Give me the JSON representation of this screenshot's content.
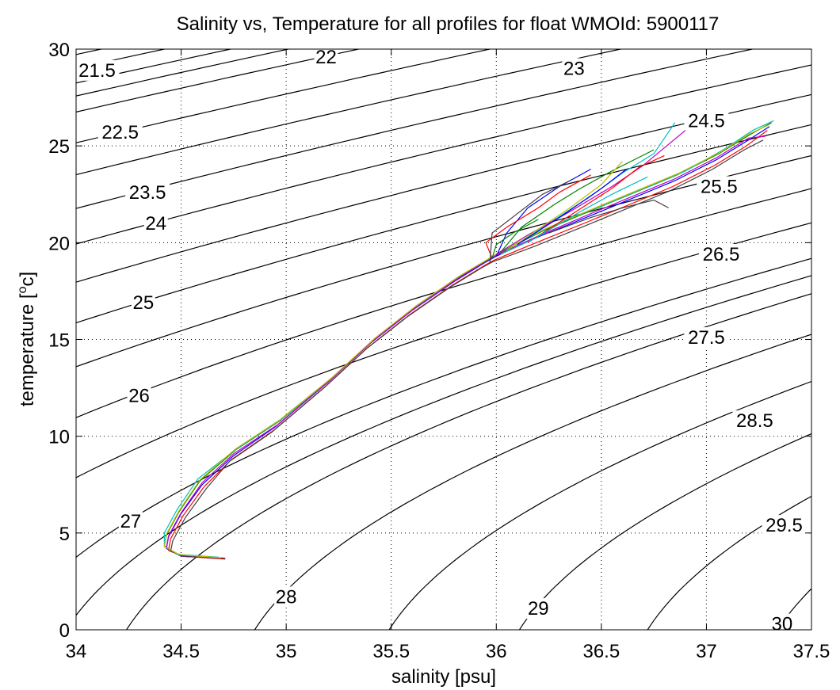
{
  "chart_data": {
    "type": "scatter",
    "title": "Salinity vs, Temperature for all profiles for float WMOId: 5900117",
    "xlabel": "salinity [psu]",
    "ylabel_main": "temperature [",
    "ylabel_sup": "o",
    "ylabel_end": "c]",
    "xlim": [
      34,
      37.5
    ],
    "ylim": [
      0,
      30
    ],
    "xticks": [
      34,
      34.5,
      35,
      35.5,
      36,
      36.5,
      37,
      37.5
    ],
    "xtick_labels": [
      "34",
      "34.5",
      "35",
      "35.5",
      "36",
      "36.5",
      "37",
      "37.5"
    ],
    "yticks": [
      0,
      5,
      10,
      15,
      20,
      25,
      30
    ],
    "ytick_labels": [
      "0",
      "5",
      "10",
      "15",
      "20",
      "25",
      "30"
    ],
    "grid": true,
    "contour_labels": [
      {
        "text": "21.5",
        "s": 34.1,
        "t": 28.9
      },
      {
        "text": "22",
        "s": 35.19,
        "t": 29.6
      },
      {
        "text": "23",
        "s": 36.37,
        "t": 29.0
      },
      {
        "text": "22.5",
        "s": 34.21,
        "t": 25.7
      },
      {
        "text": "24.5",
        "s": 37.0,
        "t": 26.3
      },
      {
        "text": "23.5",
        "s": 34.34,
        "t": 22.6
      },
      {
        "text": "25.5",
        "s": 37.06,
        "t": 22.9
      },
      {
        "text": "24",
        "s": 34.38,
        "t": 21.0
      },
      {
        "text": "26.5",
        "s": 37.07,
        "t": 19.4
      },
      {
        "text": "25",
        "s": 34.32,
        "t": 16.9
      },
      {
        "text": "27.5",
        "s": 37.0,
        "t": 15.1
      },
      {
        "text": "26",
        "s": 34.3,
        "t": 12.1
      },
      {
        "text": "28.5",
        "s": 37.23,
        "t": 10.8
      },
      {
        "text": "27",
        "s": 34.26,
        "t": 5.6
      },
      {
        "text": "28",
        "s": 35.0,
        "t": 1.7
      },
      {
        "text": "29",
        "s": 36.2,
        "t": 1.1
      },
      {
        "text": "29.5",
        "s": 37.37,
        "t": 5.4
      },
      {
        "text": "30",
        "s": 37.36,
        "t": 0.3
      }
    ],
    "isopycnals": [
      [
        34.0,
        0.75
      ],
      [
        34.0,
        3.75
      ],
      [
        34.0,
        7.86
      ],
      [
        34.0,
        10.96
      ],
      [
        34.0,
        13.59
      ],
      [
        34.0,
        15.86
      ],
      [
        34.0,
        17.96
      ],
      [
        34.0,
        19.93
      ],
      [
        34.0,
        21.77
      ],
      [
        34.0,
        23.51
      ],
      [
        34.0,
        25.16
      ],
      [
        34.0,
        26.75
      ],
      [
        34.0,
        28.25
      ],
      [
        34.0,
        29.72
      ],
      [
        34.42,
        30.0
      ],
      [
        35.01,
        30.0
      ],
      [
        34.24,
        0.0
      ],
      [
        34.85,
        0.0
      ],
      [
        35.49,
        0.0
      ],
      [
        36.11,
        0.0
      ],
      [
        36.72,
        0.0
      ],
      [
        37.34,
        0.0
      ]
    ],
    "isopycnal_slope": [
      0.058,
      0.0166,
      -0.000143
    ],
    "profile_colors": [
      "#0000ff",
      "#008000",
      "#ff0000",
      "#00bfbf",
      "#bf00bf",
      "#bfbf00",
      "#404040"
    ],
    "series": [
      {
        "color": "#0000ff",
        "s": [
          34.7,
          34.5,
          34.43,
          34.44,
          34.5,
          34.6,
          34.75,
          34.95,
          35.2,
          35.4,
          35.6,
          35.8,
          35.95,
          36.0,
          36.2,
          36.45,
          36.65,
          36.85,
          37.05,
          37.2,
          37.3
        ],
        "t": [
          3.7,
          3.8,
          4.2,
          4.8,
          6.0,
          7.5,
          9.0,
          10.5,
          12.8,
          14.8,
          16.5,
          18.0,
          19.0,
          19.3,
          20.3,
          21.4,
          22.3,
          23.2,
          24.3,
          25.3,
          26.0
        ]
      },
      {
        "color": "#008000",
        "s": [
          34.69,
          34.49,
          34.42,
          34.43,
          34.49,
          34.59,
          34.76,
          34.97,
          35.22,
          35.42,
          35.62,
          35.82,
          35.96,
          36.02,
          36.22,
          36.46,
          36.66,
          36.86,
          37.06,
          37.21,
          37.31
        ],
        "t": [
          3.7,
          3.85,
          4.3,
          4.9,
          6.1,
          7.7,
          9.3,
          10.8,
          13.0,
          15.0,
          16.7,
          18.2,
          19.1,
          19.5,
          20.6,
          21.7,
          22.6,
          23.5,
          24.6,
          25.6,
          26.2
        ]
      },
      {
        "color": "#ff0000",
        "s": [
          34.71,
          34.51,
          34.44,
          34.45,
          34.51,
          34.61,
          34.74,
          34.94,
          35.19,
          35.39,
          35.59,
          35.79,
          35.94,
          35.99,
          36.19,
          36.44,
          36.64,
          36.84,
          37.04,
          37.19,
          37.29
        ],
        "t": [
          3.65,
          3.8,
          4.1,
          4.7,
          5.9,
          7.4,
          8.8,
          10.3,
          12.6,
          14.6,
          16.3,
          17.8,
          18.8,
          19.1,
          20.0,
          21.1,
          22.0,
          22.9,
          24.0,
          25.0,
          25.8
        ]
      },
      {
        "color": "#00bfbf",
        "s": [
          34.68,
          34.48,
          34.42,
          34.42,
          34.48,
          34.58,
          34.77,
          34.98,
          35.23,
          35.43,
          35.63,
          35.83,
          35.97,
          36.03,
          36.25,
          36.5,
          36.7,
          36.9,
          37.08,
          37.22,
          37.32
        ],
        "t": [
          3.75,
          3.9,
          4.35,
          5.0,
          6.2,
          7.8,
          9.4,
          10.9,
          13.1,
          15.1,
          16.8,
          18.3,
          19.2,
          19.6,
          20.8,
          21.9,
          22.8,
          23.7,
          24.8,
          25.8,
          26.3
        ]
      },
      {
        "color": "#bf00bf",
        "s": [
          34.7,
          34.5,
          34.43,
          34.44,
          34.5,
          34.6,
          34.75,
          34.96,
          35.21,
          35.41,
          35.61,
          35.81,
          35.95,
          36.01,
          36.21,
          36.45,
          36.65,
          36.85,
          37.05,
          37.2,
          37.28
        ],
        "t": [
          3.7,
          3.82,
          4.25,
          4.85,
          6.05,
          7.6,
          9.1,
          10.6,
          12.9,
          14.9,
          16.6,
          18.1,
          19.05,
          19.4,
          20.4,
          21.5,
          22.4,
          23.3,
          24.4,
          25.4,
          25.5
        ]
      },
      {
        "color": "#404040",
        "s": [
          34.71,
          34.52,
          34.45,
          34.46,
          34.52,
          34.62,
          34.73,
          34.93,
          35.18,
          35.38,
          35.58,
          35.78,
          35.93,
          35.98,
          36.18,
          36.43,
          36.63,
          36.83,
          37.03,
          37.18,
          37.27
        ],
        "t": [
          3.7,
          3.78,
          4.05,
          4.6,
          5.8,
          7.3,
          8.7,
          10.2,
          12.5,
          14.5,
          16.2,
          17.7,
          18.7,
          19.0,
          19.8,
          20.9,
          21.8,
          22.7,
          23.8,
          24.8,
          25.3
        ]
      },
      {
        "color": "#bfbf00",
        "s": [
          34.69,
          34.49,
          34.42,
          34.43,
          34.49,
          34.59,
          34.76,
          34.97,
          35.22,
          35.42,
          35.62,
          35.82,
          35.96,
          36.02,
          36.23,
          36.47,
          36.67,
          36.87,
          37.07,
          37.2,
          37.3
        ],
        "t": [
          3.72,
          3.88,
          4.3,
          4.95,
          6.15,
          7.75,
          9.35,
          10.85,
          13.05,
          15.05,
          16.75,
          18.25,
          19.15,
          19.55,
          20.7,
          21.8,
          22.7,
          23.6,
          24.7,
          25.6,
          26.1
        ]
      },
      {
        "color": "#0000ff",
        "s": [
          36.0,
          36.05,
          36.15,
          36.3,
          36.45
        ],
        "t": [
          19.3,
          20.5,
          21.8,
          22.9,
          23.8
        ]
      },
      {
        "color": "#ff0000",
        "s": [
          35.98,
          35.95,
          36.05,
          36.2,
          36.3,
          36.45
        ],
        "t": [
          19.2,
          20.0,
          20.8,
          21.8,
          22.6,
          23.5
        ]
      },
      {
        "color": "#008000",
        "s": [
          36.02,
          36.12,
          36.28,
          36.4,
          36.55,
          36.75
        ],
        "t": [
          19.5,
          20.8,
          22.0,
          22.8,
          23.7,
          24.8
        ]
      },
      {
        "color": "#00bfbf",
        "s": [
          36.05,
          36.25,
          36.45,
          36.6,
          36.75,
          36.85
        ],
        "t": [
          19.6,
          21.0,
          22.4,
          23.6,
          24.6,
          26.2
        ]
      },
      {
        "color": "#bf00bf",
        "s": [
          36.0,
          36.15,
          36.35,
          36.55,
          36.7,
          36.9
        ],
        "t": [
          19.4,
          20.4,
          21.6,
          22.9,
          24.0,
          25.8
        ]
      },
      {
        "color": "#404040",
        "s": [
          35.97,
          35.98,
          36.1,
          36.22,
          36.35
        ],
        "t": [
          19.0,
          20.5,
          21.5,
          22.5,
          23.2
        ]
      },
      {
        "color": "#bfbf00",
        "s": [
          36.05,
          36.2,
          36.35,
          36.5,
          36.6
        ],
        "t": [
          19.6,
          20.7,
          21.8,
          23.0,
          24.2
        ]
      },
      {
        "color": "#0000ff",
        "s": [
          36.1,
          36.3,
          36.5,
          36.62
        ],
        "t": [
          19.9,
          21.3,
          22.8,
          23.8
        ]
      },
      {
        "color": "#ff0000",
        "s": [
          36.15,
          36.35,
          36.55,
          36.68,
          36.8
        ],
        "t": [
          20.0,
          21.4,
          22.8,
          23.9,
          24.5
        ]
      },
      {
        "color": "#008000",
        "s": [
          35.98,
          36.0,
          36.08,
          36.2
        ],
        "t": [
          19.2,
          19.9,
          20.5,
          21.2
        ]
      },
      {
        "color": "#404040",
        "s": [
          36.25,
          36.45,
          36.6,
          36.75,
          36.82
        ],
        "t": [
          20.5,
          21.3,
          21.8,
          22.2,
          21.8
        ]
      },
      {
        "color": "#00bfbf",
        "s": [
          36.02,
          36.18,
          36.4,
          36.55,
          36.72
        ],
        "t": [
          19.4,
          20.2,
          21.6,
          22.5,
          23.4
        ]
      }
    ]
  }
}
